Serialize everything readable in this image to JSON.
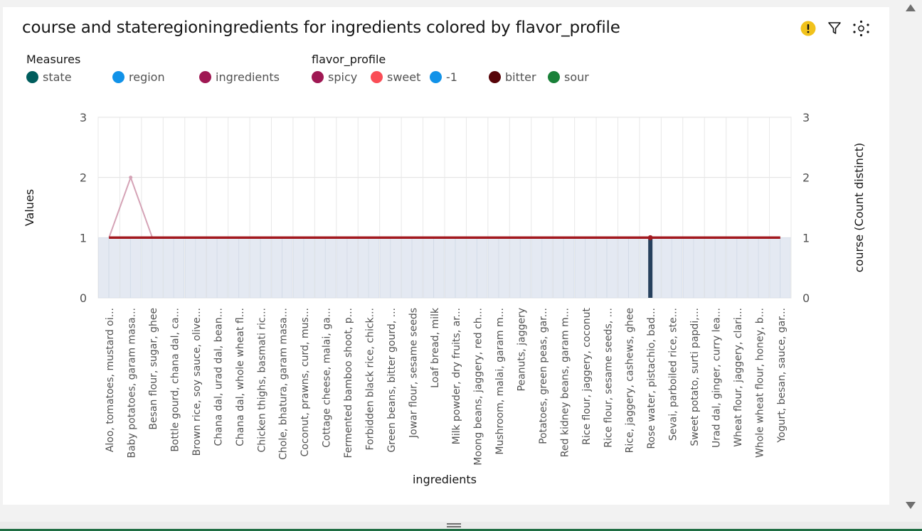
{
  "title": "course and stateregioningredients for ingredients colored by flavor_profile",
  "legend": {
    "measures_label": "Measures",
    "measures": [
      {
        "name": "state",
        "color": "#005d5d"
      },
      {
        "name": "region",
        "color": "#1192e8"
      },
      {
        "name": "ingredients",
        "color": "#9f1853"
      }
    ],
    "flavor_label": "flavor_profile",
    "flavors": [
      {
        "name": "spicy",
        "color": "#9f1853"
      },
      {
        "name": "sweet",
        "color": "#fa4d56"
      },
      {
        "name": "-1",
        "color": "#1192e8"
      },
      {
        "name": "bitter",
        "color": "#570408"
      },
      {
        "name": "sour",
        "color": "#198038"
      }
    ]
  },
  "icons": {
    "warning": "warning-icon",
    "filter": "filter-icon",
    "settings": "settings-icon"
  },
  "chart_data": {
    "type": "bar",
    "title": "course and stateregioningredients for ingredients colored by flavor_profile",
    "xlabel": "ingredients",
    "ylabel": "Values",
    "y2label": "course (Count distinct)",
    "ylim": [
      0,
      3
    ],
    "y2lim": [
      0,
      3
    ],
    "yticks": [
      0,
      1,
      2,
      3
    ],
    "grid": true,
    "legend_position": "top-left",
    "categories": [
      "Aloo, tomatoes, mustard oi...",
      "Baby potatoes, garam masa...",
      "Besan flour, sugar, ghee",
      "Bottle gourd, chana dal, ca...",
      "Brown rice, soy sauce, olive...",
      "Chana dal, urad dal, bean...",
      "Chana dal, whole wheat fl...",
      "Chicken thighs, basmati ric...",
      "Chole, bhatura, garam masa...",
      "Coconut, prawns, curd, mus...",
      "Cottage cheese, malai, ga...",
      "Fermented bamboo shoot, p...",
      "Forbidden black rice, chick...",
      "Green beans, bitter gourd, ...",
      "Jowar flour, sesame seeds",
      "Loaf bread, milk",
      "Milk powder, dry fruits, ar...",
      "Moong beans, jaggery, red ch...",
      "Mushroom, malai, garam m...",
      "Peanuts, jaggery",
      "Potatoes, green peas, gar...",
      "Red kidney beans, garam m...",
      "Rice flour, jaggery, coconut",
      "Rice flour, sesame seeds, ...",
      "Rice, jaggery, cashews, ghee",
      "Rose water, pistachio, bad...",
      "Sevai, parboiled rice, ste...",
      "Sweet potato, surti papdi,...",
      "Urad dal, ginger, curry lea...",
      "Wheat flour, jaggery, clari...",
      "Whole wheat flour, honey, b...",
      "Yogurt, besan, sauce, gar..."
    ],
    "series": [
      {
        "name": "state",
        "type": "bar",
        "values": [
          1,
          1,
          1,
          1,
          1,
          1,
          1,
          1,
          1,
          1,
          1,
          1,
          1,
          1,
          1,
          1,
          1,
          1,
          1,
          1,
          1,
          1,
          1,
          1,
          1,
          1,
          1,
          1,
          1,
          1,
          1,
          1
        ]
      },
      {
        "name": "region",
        "type": "bar",
        "values": [
          1,
          1,
          1,
          1,
          1,
          1,
          1,
          1,
          1,
          1,
          1,
          1,
          1,
          1,
          1,
          1,
          1,
          1,
          1,
          1,
          1,
          1,
          1,
          1,
          1,
          1,
          1,
          1,
          1,
          1,
          1,
          1
        ]
      },
      {
        "name": "ingredients",
        "type": "line",
        "values": [
          1,
          2,
          1,
          1,
          1,
          1,
          1,
          1,
          1,
          1,
          1,
          1,
          1,
          1,
          1,
          1,
          1,
          1,
          1,
          1,
          1,
          1,
          1,
          1,
          1,
          1,
          1,
          1,
          1,
          1,
          1,
          1
        ]
      },
      {
        "name": "course (Count distinct)",
        "type": "line",
        "values": [
          1,
          1,
          1,
          1,
          1,
          1,
          1,
          1,
          1,
          1,
          1,
          1,
          1,
          1,
          1,
          1,
          1,
          1,
          1,
          1,
          1,
          1,
          1,
          1,
          1,
          1,
          1,
          1,
          1,
          1,
          1,
          1
        ]
      }
    ]
  }
}
